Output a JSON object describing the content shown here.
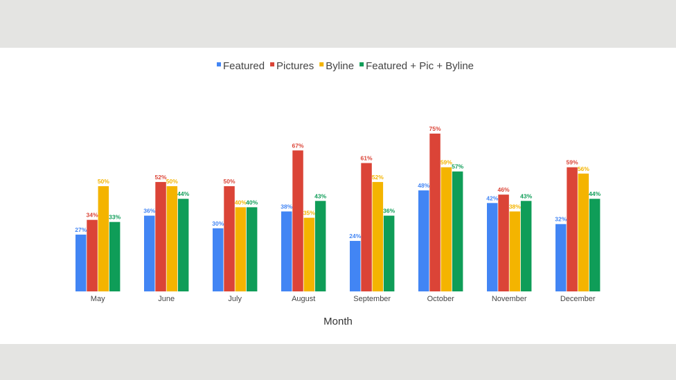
{
  "chart_data": {
    "type": "bar",
    "title": "",
    "xlabel": "Month",
    "ylabel": "",
    "ylim": [
      0,
      100
    ],
    "legend_position": "top-center",
    "grid": false,
    "categories": [
      "May",
      "June",
      "July",
      "August",
      "September",
      "October",
      "November",
      "December"
    ],
    "series": [
      {
        "name": "Featured",
        "color": "#4285f4",
        "values": [
          27,
          36,
          30,
          38,
          24,
          48,
          42,
          32
        ],
        "labels": [
          "27%",
          "36%",
          "30%",
          "38%",
          "24%",
          "48%",
          "42%",
          "32%"
        ]
      },
      {
        "name": "Pictures",
        "color": "#db4437",
        "values": [
          34,
          52,
          50,
          67,
          61,
          75,
          46,
          59
        ],
        "labels": [
          "34%",
          "52%",
          "50%",
          "67%",
          "61%",
          "75%",
          "46%",
          "59%"
        ]
      },
      {
        "name": "Byline",
        "color": "#f4b400",
        "values": [
          50,
          50,
          40,
          35,
          52,
          59,
          38,
          56
        ],
        "labels": [
          "50%",
          "50%",
          "40%",
          "35%",
          "52%",
          "59%",
          "38%",
          "56%"
        ]
      },
      {
        "name": "Featured + Pic + Byline",
        "color": "#0f9d58",
        "values": [
          33,
          44,
          40,
          43,
          36,
          57,
          43,
          44
        ],
        "labels": [
          "33%",
          "44%",
          "40%",
          "43%",
          "36%",
          "57%",
          "43%",
          "44%"
        ]
      }
    ]
  }
}
